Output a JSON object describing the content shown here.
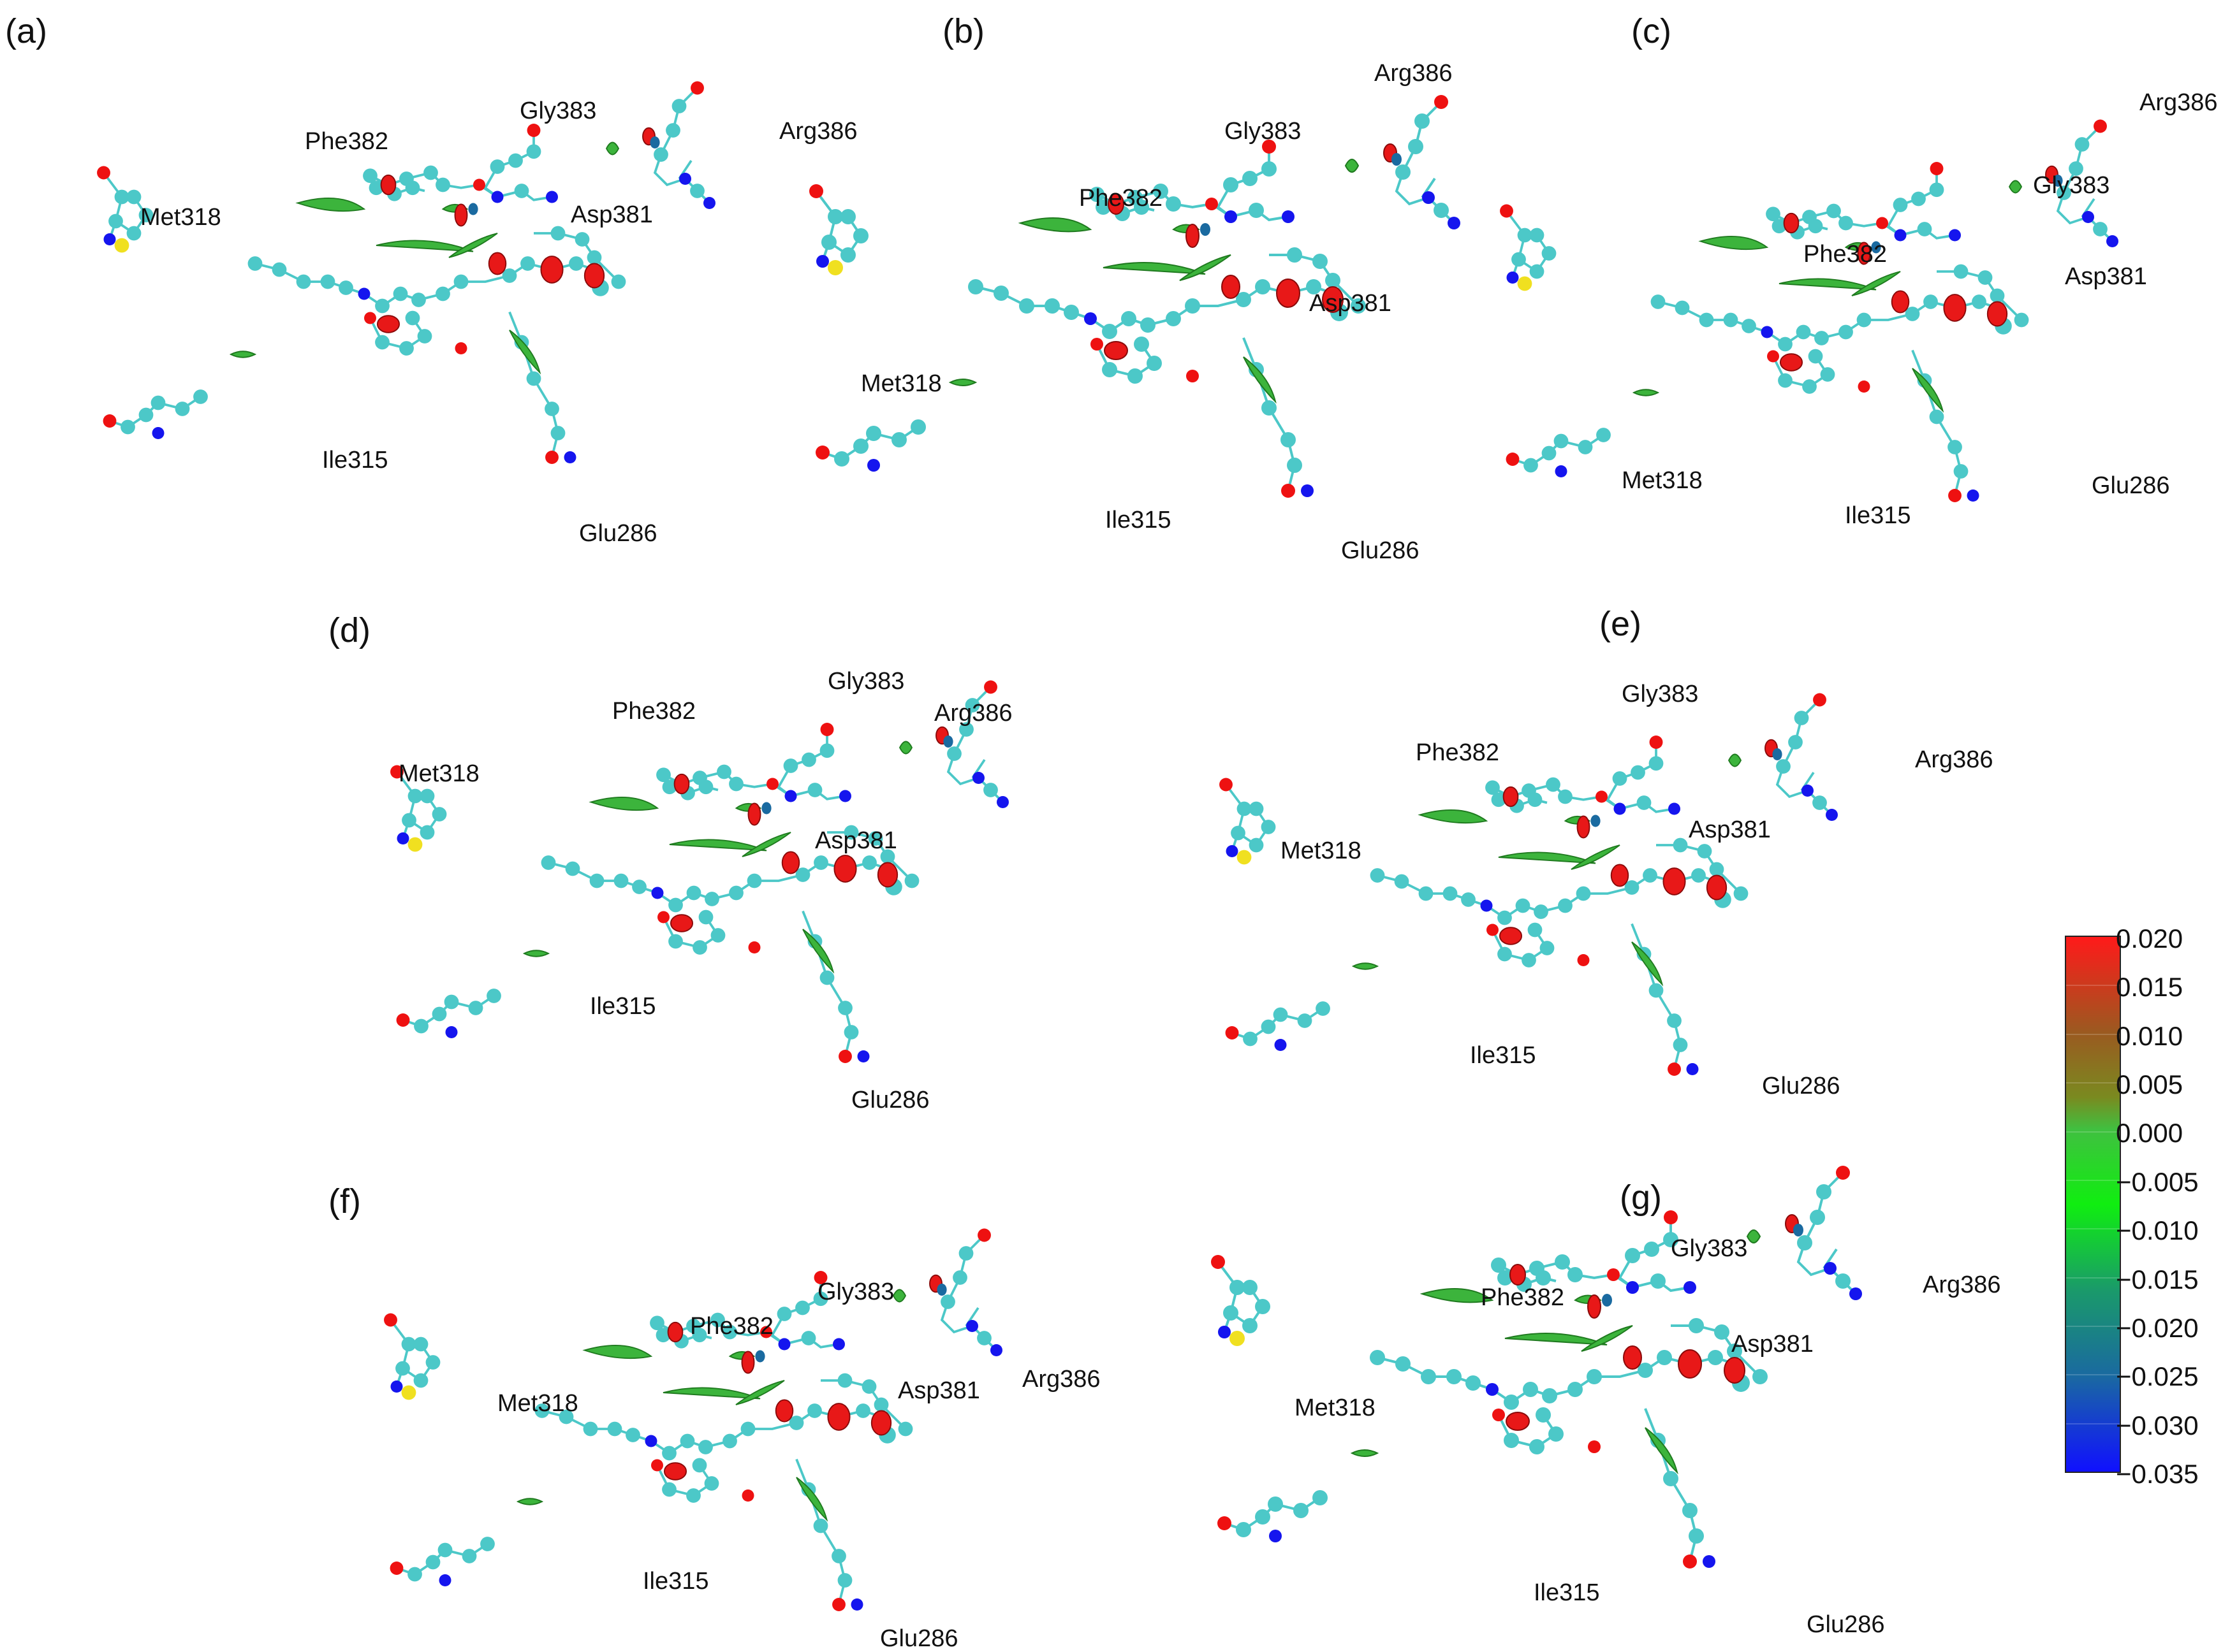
{
  "panels": [
    {
      "letter": "(a)",
      "labels": {
        "met": "Met318",
        "phe": "Phe382",
        "gly": "Gly383",
        "arg": "Arg386",
        "asp": "Asp381",
        "ile": "Ile315",
        "glu": "Glu286"
      }
    },
    {
      "letter": "(b)",
      "labels": {
        "met": "Met318",
        "phe": "Phe382",
        "gly": "Gly383",
        "arg": "Arg386",
        "asp": "Asp381",
        "ile": "Ile315",
        "glu": "Glu286"
      }
    },
    {
      "letter": "(c)",
      "labels": {
        "met": "Met318",
        "phe": "Phe382",
        "gly": "Gly383",
        "arg": "Arg386",
        "asp": "Asp381",
        "ile": "Ile315",
        "glu": "Glu286"
      }
    },
    {
      "letter": "(d)",
      "labels": {
        "met": "Met318",
        "phe": "Phe382",
        "gly": "Gly383",
        "arg": "Arg386",
        "asp": "Asp381",
        "ile": "Ile315",
        "glu": "Glu286"
      }
    },
    {
      "letter": "(e)",
      "labels": {
        "met": "Met318",
        "phe": "Phe382",
        "gly": "Gly383",
        "arg": "Arg386",
        "asp": "Asp381",
        "ile": "Ile315",
        "glu": "Glu286"
      }
    },
    {
      "letter": "(f)",
      "labels": {
        "met": "Met318",
        "phe": "Phe382",
        "gly": "Gly383",
        "arg": "Arg386",
        "asp": "Asp381",
        "ile": "Ile315",
        "glu": "Glu286"
      }
    },
    {
      "letter": "(g)",
      "labels": {
        "met": "Met318",
        "phe": "Phe382",
        "gly": "Gly383",
        "arg": "Arg386",
        "asp": "Asp381",
        "ile": "Ile315",
        "glu": "Glu286"
      }
    }
  ],
  "colorbar": {
    "ticks": [
      "0.020",
      "0.015",
      "0.010",
      "0.005",
      "0.000",
      "−0.005",
      "−0.010",
      "−0.015",
      "−0.020",
      "−0.025",
      "−0.030",
      "−0.035"
    ],
    "max_value": 0.02,
    "min_value": -0.035,
    "colors": {
      "max": "#ff1a1a",
      "mid_high": "#8a7a20",
      "zero": "#1fd01f",
      "mid_low": "#1a8a8a",
      "min": "#1010ff"
    }
  },
  "colors": {
    "carbon": "#4cc8c8",
    "oxygen": "#ee1111",
    "nitrogen": "#1515ee",
    "sulfur": "#f0e020",
    "hydrogen": "#e8e8e8",
    "bond": "#4cc8c8",
    "surface_green": "#3cb43c",
    "surface_red": "#e81818"
  }
}
